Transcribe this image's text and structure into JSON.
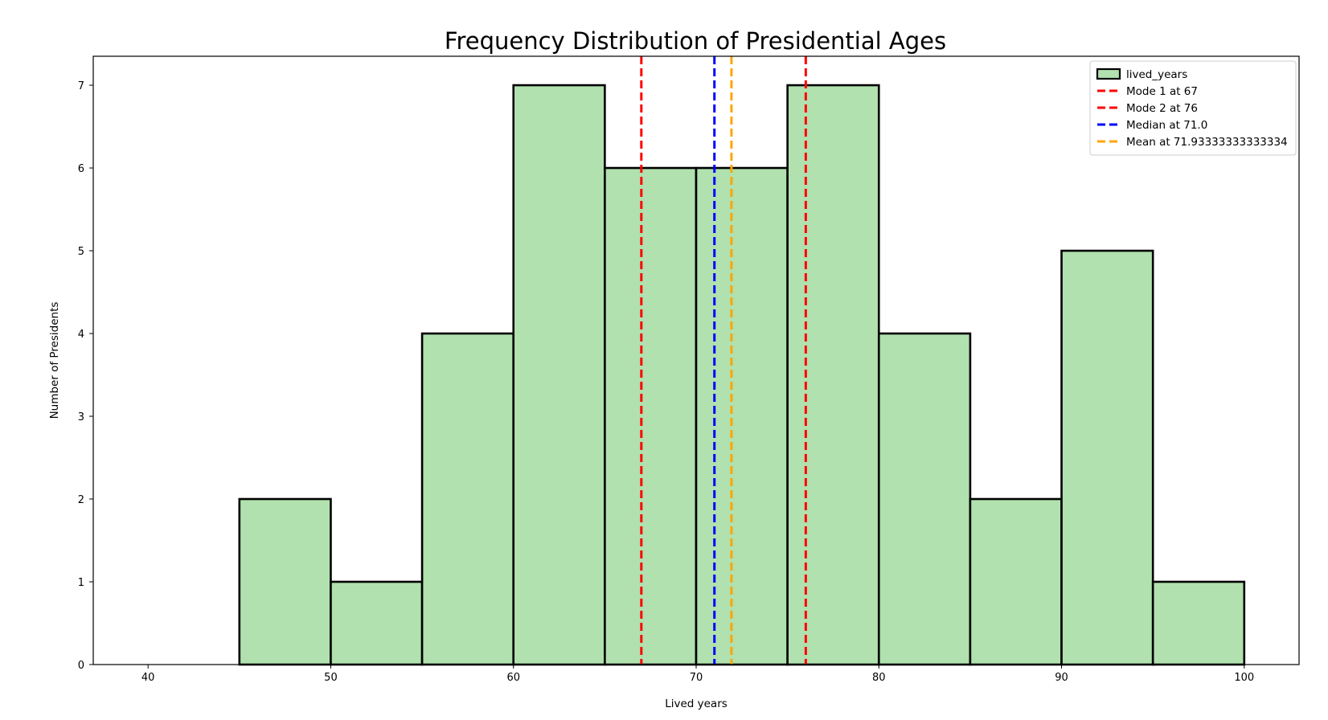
{
  "chart_data": {
    "type": "bar",
    "title": "Frequency Distribution of Presidential Ages",
    "xlabel": "Lived years",
    "ylabel": "Number of Presidents",
    "xlim": [
      37,
      103
    ],
    "ylim": [
      0,
      7.35
    ],
    "xticks": [
      40,
      50,
      60,
      70,
      80,
      90,
      100
    ],
    "yticks": [
      0,
      1,
      2,
      3,
      4,
      5,
      6,
      7
    ],
    "grid": false,
    "legend_position": "top-right",
    "bins": [
      {
        "start": 40,
        "end": 45,
        "count": 0
      },
      {
        "start": 45,
        "end": 50,
        "count": 2
      },
      {
        "start": 50,
        "end": 55,
        "count": 1
      },
      {
        "start": 55,
        "end": 60,
        "count": 4
      },
      {
        "start": 60,
        "end": 65,
        "count": 7
      },
      {
        "start": 65,
        "end": 70,
        "count": 6
      },
      {
        "start": 70,
        "end": 75,
        "count": 6
      },
      {
        "start": 75,
        "end": 80,
        "count": 7
      },
      {
        "start": 80,
        "end": 85,
        "count": 4
      },
      {
        "start": 85,
        "end": 90,
        "count": 2
      },
      {
        "start": 90,
        "end": 95,
        "count": 5
      },
      {
        "start": 95,
        "end": 100,
        "count": 1
      }
    ],
    "series_name": "lived_years",
    "bar_color": "#b0e1ae",
    "lines": [
      {
        "name": "Mode 1 at 67",
        "x": 67,
        "color": "#ff0000"
      },
      {
        "name": "Mode 2 at 76",
        "x": 76,
        "color": "#ff0000"
      },
      {
        "name": "Median at 71.0",
        "x": 71.0,
        "color": "#0000ff"
      },
      {
        "name": "Mean at 71.93333333333334",
        "x": 71.93333333333334,
        "color": "#ffa500"
      }
    ]
  }
}
